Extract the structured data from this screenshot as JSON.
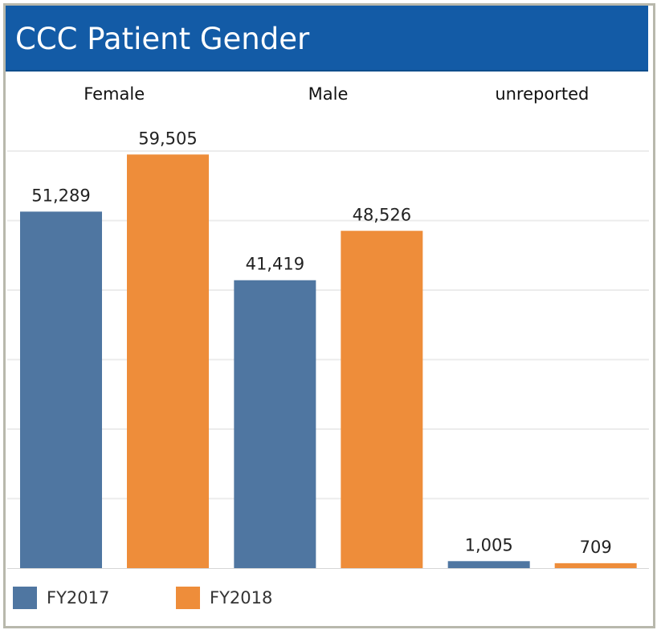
{
  "chart_data": {
    "type": "bar",
    "title": "CCC Patient Gender",
    "categories": [
      "Female",
      "Male",
      "unreported"
    ],
    "series": [
      {
        "name": "FY2017",
        "values": [
          51289,
          41419,
          1005
        ],
        "labels": [
          "51,289",
          "41,419",
          "1,005"
        ],
        "color": "#4f76a1"
      },
      {
        "name": "FY2018",
        "values": [
          59505,
          48526,
          709
        ],
        "labels": [
          "59,505",
          "48,526",
          "709"
        ],
        "color": "#ee8d3a"
      }
    ],
    "ylim": [
      0,
      60000
    ],
    "grid": true,
    "legend_position": "bottom-left"
  }
}
